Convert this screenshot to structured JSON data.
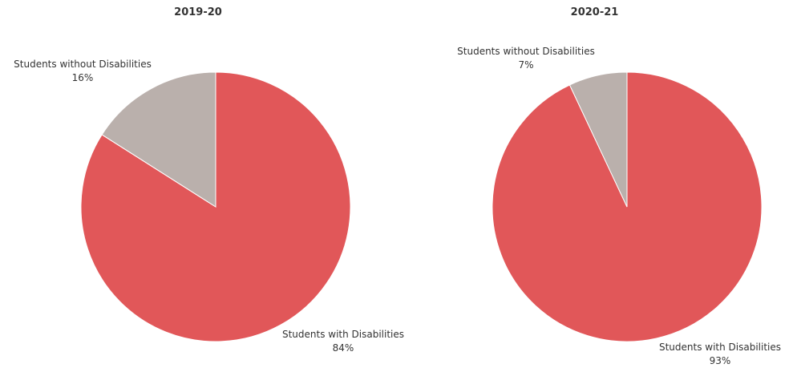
{
  "chart_data": [
    {
      "type": "pie",
      "title": "2019-20",
      "slices": [
        {
          "label": "Students with Disabilities",
          "value": 84,
          "value_label": "84%",
          "color": "#E15759"
        },
        {
          "label": "Students without Disabilities",
          "value": 16,
          "value_label": "16%",
          "color": "#BAB0AC"
        }
      ],
      "start_angle": "12 o'clock",
      "direction": "clockwise"
    },
    {
      "type": "pie",
      "title": "2020-21",
      "slices": [
        {
          "label": "Students with Disabilities",
          "value": 93,
          "value_label": "93%",
          "color": "#E15759"
        },
        {
          "label": "Students without Disabilities",
          "value": 7,
          "value_label": "7%",
          "color": "#BAB0AC"
        }
      ],
      "start_angle": "12 o'clock",
      "direction": "clockwise"
    }
  ]
}
